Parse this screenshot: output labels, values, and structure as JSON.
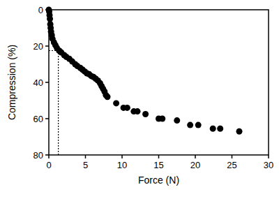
{
  "chart_data": {
    "type": "scatter",
    "x_label": "Force (N)",
    "y_label": "Compression (%)",
    "x": [
      0,
      0.05,
      0.1,
      0.15,
      0.2,
      0.25,
      0.3,
      0.4,
      0.5,
      0.7,
      0.9,
      1.1,
      1.4,
      1.7,
      2.1,
      2.4,
      2.8,
      3.2,
      3.6,
      3.9,
      4.3,
      4.6,
      4.9,
      5.2,
      5.5,
      5.8,
      6.1,
      6.4,
      6.7,
      7,
      7.2,
      7.4,
      7.6,
      7.8,
      8,
      9.2,
      10.2,
      10.7,
      11.6,
      12.1,
      13.2,
      15,
      15.5,
      17.5,
      19.3,
      20.4,
      22.4,
      23.4,
      26
    ],
    "values": [
      0,
      1,
      3,
      5,
      8,
      10,
      12,
      14,
      16,
      18,
      19.5,
      21,
      22.5,
      23.5,
      25,
      26,
      27,
      28.5,
      30,
      31,
      32,
      33,
      34,
      35,
      35.5,
      36.5,
      37,
      38,
      39,
      40.5,
      42,
      43.5,
      45,
      47,
      48,
      51.5,
      54,
      54,
      56,
      56,
      57.5,
      60,
      60,
      61,
      63.5,
      63.5,
      65.5,
      65.5,
      67
    ],
    "color": "#000000",
    "marker": "circle",
    "xlim": [
      0,
      30
    ],
    "xticks": [
      0,
      5,
      10,
      15,
      20,
      25,
      30
    ],
    "ylim": [
      80,
      0
    ],
    "yticks": [
      0,
      20,
      40,
      60,
      80
    ],
    "grid": false,
    "reference": {
      "x": 1.3,
      "y": 22.5
    }
  }
}
